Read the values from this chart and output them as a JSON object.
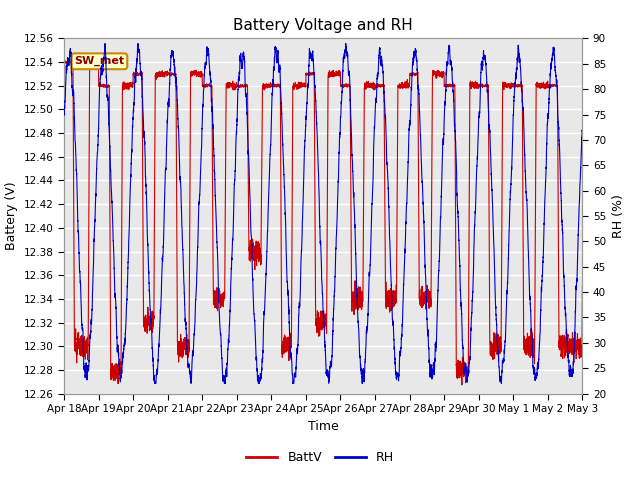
{
  "title": "Battery Voltage and RH",
  "xlabel": "Time",
  "ylabel_left": "Battery (V)",
  "ylabel_right": "RH (%)",
  "ylim_left": [
    12.26,
    12.56
  ],
  "ylim_right": [
    20,
    90
  ],
  "yticks_left": [
    12.26,
    12.28,
    12.3,
    12.32,
    12.34,
    12.36,
    12.38,
    12.4,
    12.42,
    12.44,
    12.46,
    12.48,
    12.5,
    12.52,
    12.54,
    12.56
  ],
  "yticks_right": [
    20,
    25,
    30,
    35,
    40,
    45,
    50,
    55,
    60,
    65,
    70,
    75,
    80,
    85,
    90
  ],
  "xtick_labels": [
    "Apr 18",
    "Apr 19",
    "Apr 20",
    "Apr 21",
    "Apr 22",
    "Apr 23",
    "Apr 24",
    "Apr 25",
    "Apr 26",
    "Apr 27",
    "Apr 28",
    "Apr 29",
    "Apr 30",
    "May 1",
    "May 2",
    "May 3"
  ],
  "battv_color": "#cc0000",
  "rh_color": "#0000cc",
  "bg_color": "#ffffff",
  "plot_bg_color": "#e8e8e8",
  "grid_color": "#ffffff",
  "annotation_label": "SW_met",
  "annotation_bg": "#ffffcc",
  "annotation_border": "#cc8800",
  "annotation_text_color": "#8b0000",
  "legend_battv": "BattV",
  "legend_rh": "RH",
  "title_fontsize": 11,
  "axis_label_fontsize": 9,
  "tick_fontsize": 7.5
}
